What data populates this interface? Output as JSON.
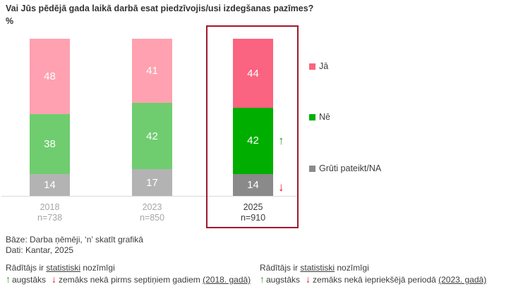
{
  "title": "Vai Jūs pēdējā gada laikā darbā esat piedzīvojis/usi izdegšanas pazīmes?",
  "unit_label": "%",
  "chart_data": {
    "type": "bar",
    "stacked": true,
    "title": "Vai Jūs pēdējā gada laikā darbā esat piedzīvojis/usi izdegšanas pazīmes?",
    "ylabel": "%",
    "ylim": [
      0,
      100
    ],
    "grid": false,
    "legend_position": "right",
    "categories": [
      "2018",
      "2023",
      "2025"
    ],
    "category_sublabels": [
      "n=738",
      "n=850",
      "n=910"
    ],
    "highlight_index": 2,
    "series": [
      {
        "name": "Jā",
        "values": [
          48,
          41,
          44
        ],
        "color_muted": "#ffa1b0",
        "color_vivid": "#fa6480"
      },
      {
        "name": "Nē",
        "values": [
          38,
          42,
          42
        ],
        "color_muted": "#6fcd6f",
        "color_vivid": "#00ae00"
      },
      {
        "name": "Grūti pateikt/NA",
        "values": [
          14,
          17,
          14
        ],
        "color_muted": "#b3b3b3",
        "color_vivid": "#8a8a8a"
      }
    ],
    "significance_arrows": [
      {
        "category_index": 2,
        "series_index": 1,
        "direction": "up",
        "color": "#2ba02b"
      },
      {
        "category_index": 2,
        "series_index": 2,
        "direction": "down",
        "color": "#e8112d"
      }
    ],
    "highlight_box_color": "#a0182f"
  },
  "icons": {
    "up_arrow": "↑",
    "down_arrow": "↓"
  },
  "footer": {
    "base_line": "Bāze: Darba ņēmēji, ‘n’ skatīt grafikā",
    "source_line": "Dati: Kantar, 2025"
  },
  "notes": {
    "left": {
      "line1_pre": "Rādītājs ir ",
      "line1_underline": "statistiski",
      "line1_post": " nozīmīgi",
      "up_label": "augstāks",
      "down_text": "zemāks nekā pirms septiņiem gadiem ",
      "down_underline": "(2018. gadā)"
    },
    "right": {
      "line1_pre": "Rādītājs ir ",
      "line1_underline": "statistiski",
      "line1_post": " nozīmīgi",
      "up_label": "augstāks",
      "down_text": "zemāks nekā iepriekšējā periodā ",
      "down_underline": "(2023. gadā)"
    }
  }
}
